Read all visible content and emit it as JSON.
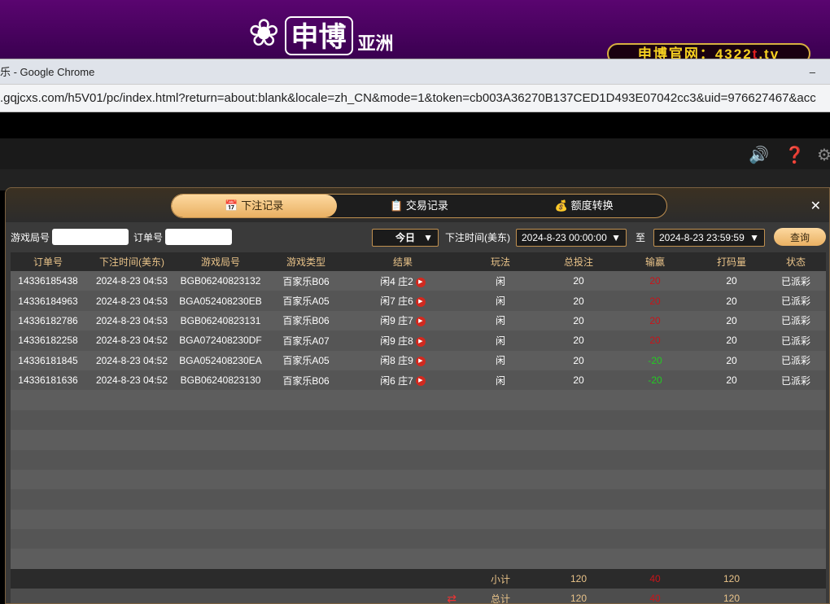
{
  "banner": {
    "logo_text": "申博",
    "logo_sub": "亚洲",
    "site_prefix": "申博官网：4322",
    "site_t": "t",
    "site_suffix": ".tv"
  },
  "browser": {
    "title": "乐 - Google Chrome",
    "url": ".gqjcxs.com/h5V01/pc/index.html?return=about:blank&locale=zh_CN&mode=1&token=cb003A36270B137CED1D493E07042cc3&uid=976627467&acc"
  },
  "tabs": [
    {
      "label": "下注记录",
      "icon": "calendar-icon",
      "active": true
    },
    {
      "label": "交易记录",
      "icon": "clipboard-icon"
    },
    {
      "label": "额度转换",
      "icon": "coins-icon"
    }
  ],
  "filter": {
    "game_no_label": "游戏局号",
    "game_no_value": "",
    "order_no_label": "订单号",
    "order_no_value": "",
    "range": "今日",
    "time_label": "下注时间(美东)",
    "from": "2024-8-23 00:00:00",
    "to_label": "至",
    "to": "2024-8-23 23:59:59",
    "query": "查询"
  },
  "columns": [
    "订单号",
    "下注时间(美东)",
    "游戏局号",
    "游戏类型",
    "结果",
    "玩法",
    "总投注",
    "输赢",
    "打码量",
    "状态"
  ],
  "rows": [
    [
      "14336185438",
      "2024-8-23 04:53",
      "BGB06240823132",
      "百家乐B06",
      "闲4 庄2",
      "闲",
      "20",
      "20",
      "20",
      "已派彩"
    ],
    [
      "14336184963",
      "2024-8-23 04:53",
      "BGA052408230EB",
      "百家乐A05",
      "闲7 庄6",
      "闲",
      "20",
      "20",
      "20",
      "已派彩"
    ],
    [
      "14336182786",
      "2024-8-23 04:53",
      "BGB06240823131",
      "百家乐B06",
      "闲9 庄7",
      "闲",
      "20",
      "20",
      "20",
      "已派彩"
    ],
    [
      "14336182258",
      "2024-8-23 04:52",
      "BGA072408230DF",
      "百家乐A07",
      "闲9 庄8",
      "闲",
      "20",
      "20",
      "20",
      "已派彩"
    ],
    [
      "14336181845",
      "2024-8-23 04:52",
      "BGA052408230EA",
      "百家乐A05",
      "闲8 庄9",
      "闲",
      "20",
      "-20",
      "20",
      "已派彩"
    ],
    [
      "14336181636",
      "2024-8-23 04:52",
      "BGB06240823130",
      "百家乐B06",
      "闲6 庄7",
      "闲",
      "20",
      "-20",
      "20",
      "已派彩"
    ]
  ],
  "subtotal": {
    "label": "小计",
    "bet": "120",
    "win": "40",
    "valid": "120"
  },
  "total": {
    "label": "总计",
    "bet": "120",
    "win": "40",
    "valid": "120"
  },
  "colors": {
    "win_positive": "#c8141a",
    "win_negative": "#22cc22",
    "accent": "#e9b062"
  }
}
